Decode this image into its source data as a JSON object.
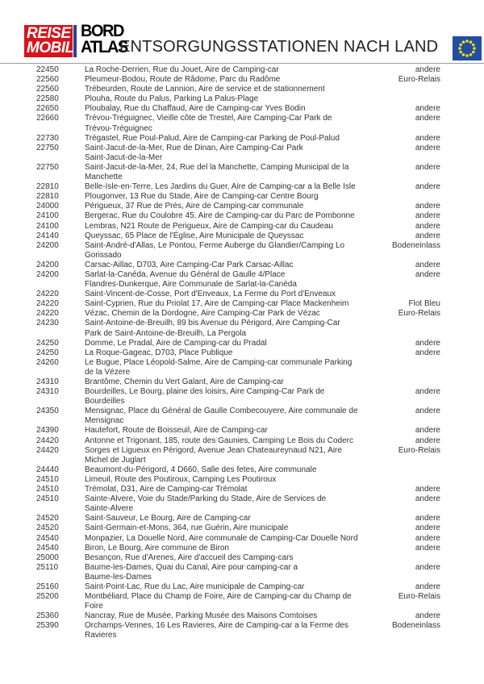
{
  "header": {
    "logo_reise": [
      "REISE",
      "MOBIL"
    ],
    "logo_bord": [
      "BORD",
      "ATLAS"
    ],
    "title": "ENTSORGUNGSSTATIONEN NACH LAND",
    "flag_icon": "eu-flag-icon",
    "colors": {
      "reise_red": "#d8141c",
      "eu_blue": "#1f4ea3",
      "eu_star": "#ffdd00"
    }
  },
  "rows": [
    {
      "zip": "22450",
      "lines": [
        "La Roche-Derrien, Rue du Jouet, Aire de Camping-car"
      ],
      "type": "andere"
    },
    {
      "zip": "22560",
      "lines": [
        "Pleumeur-Bodou, Route de Râdome, Parc du Radôme"
      ],
      "type": "Euro-Relais"
    },
    {
      "zip": "22560",
      "lines": [
        "Trébeurden, Route de Lannion, Aire de service et de stationnement"
      ],
      "type": ""
    },
    {
      "zip": "22580",
      "lines": [
        "Plouha, Route du Palus, Parking La Palus-Plage"
      ],
      "type": ""
    },
    {
      "zip": "22650",
      "lines": [
        "Ploubalay, Rue du Chaffaud, Aire de Camping-car Yves Bodin"
      ],
      "type": "andere"
    },
    {
      "zip": "22660",
      "lines": [
        "Trévou-Tréguignec, Vieille côte de Trestel, Aire Camping-Car Park de",
        "Trévou-Tréguignec"
      ],
      "type": "andere"
    },
    {
      "zip": "22730",
      "lines": [
        "Trégastel, Rue Poul-Palud, Aire de Camping-car Parking de Poul-Palud"
      ],
      "type": "andere"
    },
    {
      "zip": "22750",
      "lines": [
        "Saint-Jacut-de-la-Mer, Rue de Dinan, Aire Camping-Car Park",
        "Saint-Jacut-de-la-Mer"
      ],
      "type": "andere"
    },
    {
      "zip": "22750",
      "lines": [
        "Saint-Jacut-de-la-Mer, 24, Rue del la Manchette, Camping Municipal de la",
        "Manchette"
      ],
      "type": "andere"
    },
    {
      "zip": "22810",
      "lines": [
        "Belle-Isle-en-Terre, Les Jardins du Guer, Aire de Camping-car a la Belle Isle"
      ],
      "type": "andere"
    },
    {
      "zip": "22810",
      "lines": [
        "Plougonver, 13 Rue du Stade, Aire de Camping-car Centre Bourg"
      ],
      "type": ""
    },
    {
      "zip": "24000",
      "lines": [
        "Périgueux, 37 Rue de Prés, Aire de Camping-car communale"
      ],
      "type": "andere"
    },
    {
      "zip": "24100",
      "lines": [
        "Bergerac, Rue du Coulobre 45, Aire de Camping-car du Parc de Pombonne"
      ],
      "type": "andere"
    },
    {
      "zip": "24100",
      "lines": [
        "Lembras, N21 Route de Perigueux, Aire de Camping-car du Caudeau"
      ],
      "type": "andere"
    },
    {
      "zip": "24140",
      "lines": [
        "Queyssac, 65 Place de l'Église, Aire Municipale de Queyssac"
      ],
      "type": "andere"
    },
    {
      "zip": "24200",
      "lines": [
        "Saint-André-d'Allas, Le Pontou, Ferme Auberge du Glandier/Camping Lo",
        "Gorissado"
      ],
      "type": "Bodeneinlass"
    },
    {
      "zip": "24200",
      "lines": [
        "Carsac-Aillac, D703, Aire Camping-Car Park Carsac-Aillac"
      ],
      "type": "andere"
    },
    {
      "zip": "24200",
      "lines": [
        "Sarlat-la-Canéda, Avenue du Général de Gaulle 4/Place",
        "Flandres-Dunkerque, Aire Communale de Sarlat-la-Canéda"
      ],
      "type": "andere"
    },
    {
      "zip": "24220",
      "lines": [
        "Saint-Vincent-de-Cosse, Port d'Enveaux, La Ferme du Port d'Enveaux"
      ],
      "type": ""
    },
    {
      "zip": "24220",
      "lines": [
        "Saint-Cyprien, Rue du Priolat 17, Aire de Camping-car Place Mackenheim"
      ],
      "type": "Flot Bleu"
    },
    {
      "zip": "24220",
      "lines": [
        "Vézac, Chemin de la Dordogne, Aire Camping-Car Park de Vézac"
      ],
      "type": "Euro-Relais"
    },
    {
      "zip": "24230",
      "lines": [
        "Saint-Antoine-de-Breuilh, 89 bis Avenue du Périgord, Aire Camping-Car",
        "Park de Saint-Antoine-de-Breuilh, La Pergola"
      ],
      "type": ""
    },
    {
      "zip": "24250",
      "lines": [
        "Domme, Le Pradal, Aire de Camping-car du Pradal"
      ],
      "type": "andere"
    },
    {
      "zip": "24250",
      "lines": [
        "La Roque-Gageac, D703, Place Publique"
      ],
      "type": "andere"
    },
    {
      "zip": "24260",
      "lines": [
        "Le Bugue, Place Léopold-Salme, Aire de Camping-car communale Parking",
        "de la Vézere"
      ],
      "type": ""
    },
    {
      "zip": "24310",
      "lines": [
        "Brantôme, Chemin du Vert Galant, Aire de Camping-car"
      ],
      "type": ""
    },
    {
      "zip": "24310",
      "lines": [
        "Bourdeilles, Le Bourg, plaine des loisirs, Aire Camping-Car Park de",
        "Bourdeilles"
      ],
      "type": "andere"
    },
    {
      "zip": "24350",
      "lines": [
        "Mensignac, Place du Général de Gaulle Combecouyere, Aire communale de",
        "Mensignac"
      ],
      "type": "andere"
    },
    {
      "zip": "24390",
      "lines": [
        "Hautefort, Route de Boisseuil, Aire de Camping-car"
      ],
      "type": "andere"
    },
    {
      "zip": "24420",
      "lines": [
        "Antonne et Trigonant, 185, route des Gaunies, Camping Le Bois du Coderc"
      ],
      "type": "andere"
    },
    {
      "zip": "24420",
      "lines": [
        "Sorges et Ligueux en Périgord, Avenue Jean Chateaureynaud N21, Aire",
        "Michel de Juglart"
      ],
      "type": "Euro-Relais"
    },
    {
      "zip": "24440",
      "lines": [
        "Beaumont-du-Périgord, 4 D660, Salle des fetes, Aire communale"
      ],
      "type": ""
    },
    {
      "zip": "24510",
      "lines": [
        "Limeuil, Route des Poutiroux, Camping Les Poutiroux"
      ],
      "type": ""
    },
    {
      "zip": "24510",
      "lines": [
        "Trémolat, D31, Aire de Camping-car Trémolat"
      ],
      "type": "andere"
    },
    {
      "zip": "24510",
      "lines": [
        "Sainte-Alvere, Voie du Stade/Parking du Stade, Aire de Services de",
        "Sainte-Alvere"
      ],
      "type": "andere"
    },
    {
      "zip": "24520",
      "lines": [
        "Saint-Sauveur, Le Bourg, Aire de Camping-car"
      ],
      "type": "andere"
    },
    {
      "zip": "24520",
      "lines": [
        "Saint-Germain-et-Mons, 364, rue Guérin, Aire municipale"
      ],
      "type": "andere"
    },
    {
      "zip": "24540",
      "lines": [
        "Monpazier, La Douelle Nord, Aire communale de Camping-Car Douelle Nord"
      ],
      "type": "andere"
    },
    {
      "zip": "24540",
      "lines": [
        "Biron, Le Bourg, Aire commune de Biron"
      ],
      "type": "andere"
    },
    {
      "zip": "25000",
      "lines": [
        "Besançon, Rue d'Arenes, Aire d'accueil des Camping-cars"
      ],
      "type": ""
    },
    {
      "zip": "25110",
      "lines": [
        "Baume-les-Dames, Quai du Canal, Aire pour camping-car a",
        "Baume-les-Dames"
      ],
      "type": "andere"
    },
    {
      "zip": "25160",
      "lines": [
        "Saint-Point-Lac, Rue du Lac, Aire municipale de Camping-car"
      ],
      "type": "andere"
    },
    {
      "zip": "25200",
      "lines": [
        "Montbéliard, Place du Champ de Foire, Aire de Camping-car du Champ de",
        "Foire"
      ],
      "type": "Euro-Relais"
    },
    {
      "zip": "25360",
      "lines": [
        "Nancray, Rue de Musée, Parking Musée des Maisons Comtoises"
      ],
      "type": "andere"
    },
    {
      "zip": "25390",
      "lines": [
        "Orchamps-Vennes, 16 Les Ravieres, Aire de Camping-car a la Ferme des",
        "Ravieres"
      ],
      "type": "Bodeneinlass"
    }
  ]
}
